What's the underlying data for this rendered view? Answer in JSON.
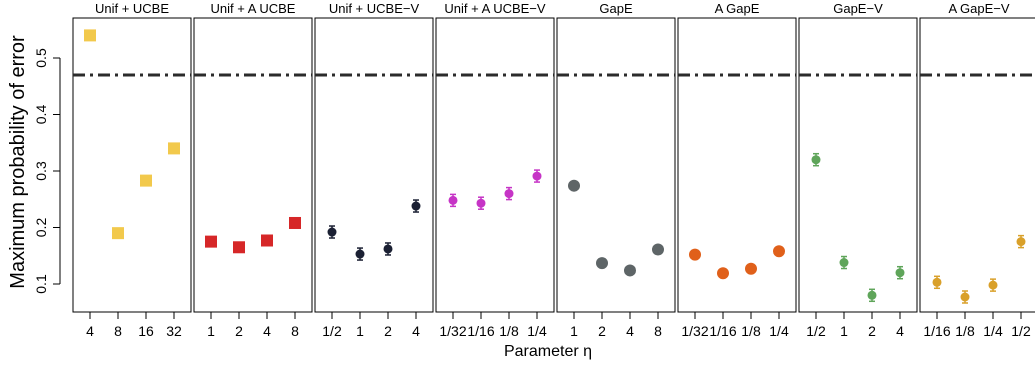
{
  "chart_data": {
    "type": "scatter",
    "ylabel": "Maximum probability of error",
    "xlabel": "Parameter η",
    "ylim": [
      0.05,
      0.6
    ],
    "yticks": [
      "0.1",
      "0.2",
      "0.3",
      "0.4",
      "0.5"
    ],
    "reference_line": {
      "y": 0.47,
      "style": "dash-dot"
    },
    "panels": [
      {
        "title": "Unif + UCBE",
        "color": "#F2C94C",
        "marker": "square",
        "categories": [
          "4",
          "8",
          "16",
          "32"
        ],
        "values": [
          0.54,
          0.19,
          0.283,
          0.34
        ]
      },
      {
        "title": "Unif + A UCBE",
        "color": "#D62728",
        "marker": "square",
        "categories": [
          "1",
          "2",
          "4",
          "8"
        ],
        "values": [
          0.175,
          0.165,
          0.177,
          0.208
        ]
      },
      {
        "title": "Unif + UCBE−V",
        "color": "#1B2033",
        "marker": "point",
        "categories": [
          "1/2",
          "1",
          "2",
          "4"
        ],
        "values": [
          0.192,
          0.153,
          0.162,
          0.238
        ]
      },
      {
        "title": "Unif + A UCBE−V",
        "color": "#C634C6",
        "marker": "point",
        "categories": [
          "1/32",
          "1/16",
          "1/8",
          "1/4"
        ],
        "values": [
          0.248,
          0.243,
          0.26,
          0.291
        ]
      },
      {
        "title": "GapE",
        "color": "#5E6567",
        "marker": "circle",
        "categories": [
          "1",
          "2",
          "4",
          "8"
        ],
        "values": [
          0.274,
          0.137,
          0.124,
          0.161
        ]
      },
      {
        "title": "A GapE",
        "color": "#E0601A",
        "marker": "circle",
        "categories": [
          "1/32",
          "1/16",
          "1/8",
          "1/4"
        ],
        "values": [
          0.152,
          0.119,
          0.127,
          0.158
        ]
      },
      {
        "title": "GapE−V",
        "color": "#5FA55A",
        "marker": "point",
        "categories": [
          "1/2",
          "1",
          "2",
          "4"
        ],
        "values": [
          0.32,
          0.138,
          0.08,
          0.12
        ]
      },
      {
        "title": "A GapE−V",
        "color": "#D9A02A",
        "marker": "point",
        "categories": [
          "1/16",
          "1/8",
          "1/4",
          "1/2"
        ],
        "values": [
          0.103,
          0.077,
          0.098,
          0.175
        ]
      }
    ]
  }
}
